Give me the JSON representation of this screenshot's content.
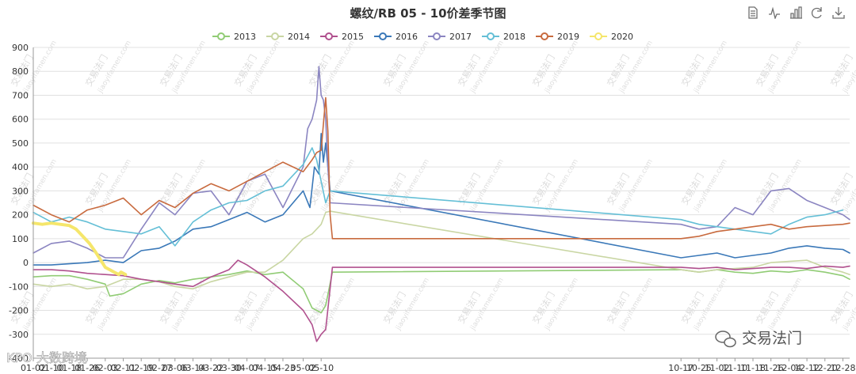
{
  "toolbar": {
    "icons": [
      "data-view-icon",
      "line-chart-icon",
      "bar-chart-icon",
      "refresh-icon",
      "download-icon"
    ]
  },
  "watermarks": {
    "text": "交易法门",
    "url": "jiaoyifamen.com",
    "bottom_left": "KPO 大数跨境",
    "bottom_right": "交易法门"
  },
  "chart_data": {
    "type": "line",
    "title": "螺纹/RB 05 - 10价差季节图",
    "xlabel": "",
    "ylabel": "",
    "ylim": [
      -400,
      900
    ],
    "yticks": [
      -400,
      -300,
      -200,
      -100,
      0,
      100,
      200,
      300,
      400,
      500,
      600,
      700,
      800,
      900
    ],
    "grid": true,
    "legend_position": "top-center",
    "x_date_range": [
      "01-02",
      "12-31"
    ],
    "xticks": [
      "01-02",
      "01-10",
      "01-18",
      "01-26",
      "02-03",
      "02-11",
      "02-19",
      "02-27",
      "03-06",
      "03-14",
      "03-22",
      "03-30",
      "04-07",
      "04-15",
      "04-23",
      "05-02",
      "05-10",
      "10-17",
      "10-25",
      "11-02",
      "11-10",
      "11-18",
      "11-26",
      "12-04",
      "12-12",
      "12-20",
      "12-28"
    ],
    "series": [
      {
        "name": "2013",
        "color": "#91cc75",
        "x": [
          "01-02",
          "01-10",
          "01-18",
          "01-26",
          "02-03",
          "02-05",
          "02-11",
          "02-19",
          "02-27",
          "03-06",
          "03-14",
          "03-22",
          "03-30",
          "04-07",
          "04-15",
          "04-23",
          "05-02",
          "05-06",
          "05-10",
          "05-12",
          "05-15",
          "10-17",
          "10-25",
          "11-02",
          "11-10",
          "11-18",
          "11-26",
          "12-04",
          "12-12",
          "12-20",
          "12-28",
          "12-31"
        ],
        "values": [
          -60,
          -55,
          -55,
          -70,
          -90,
          -140,
          -130,
          -90,
          -75,
          -85,
          -70,
          -60,
          -50,
          -35,
          -50,
          -40,
          -110,
          -190,
          -210,
          -180,
          -40,
          -30,
          -40,
          -30,
          -40,
          -45,
          -35,
          -40,
          -30,
          -40,
          -55,
          -70
        ]
      },
      {
        "name": "2014",
        "color": "#c9d6a3",
        "x": [
          "01-02",
          "01-10",
          "01-18",
          "01-26",
          "02-03",
          "02-11",
          "02-19",
          "02-27",
          "03-06",
          "03-14",
          "03-22",
          "03-30",
          "04-07",
          "04-15",
          "04-23",
          "05-02",
          "05-06",
          "05-10",
          "05-12",
          "05-14",
          "10-17",
          "10-25",
          "11-02",
          "11-10",
          "11-18",
          "11-26",
          "12-04",
          "12-12",
          "12-20",
          "12-28",
          "12-31"
        ],
        "values": [
          -90,
          -100,
          -90,
          -110,
          -100,
          -70,
          -70,
          -80,
          -100,
          -110,
          -80,
          -60,
          -40,
          -40,
          10,
          100,
          120,
          160,
          210,
          215,
          -30,
          -40,
          -30,
          -25,
          -20,
          0,
          5,
          10,
          -20,
          -40,
          -50
        ]
      },
      {
        "name": "2015",
        "color": "#b0508e",
        "x": [
          "01-02",
          "01-10",
          "01-18",
          "01-26",
          "02-03",
          "02-11",
          "02-19",
          "02-27",
          "03-06",
          "03-14",
          "03-22",
          "03-30",
          "04-03",
          "04-07",
          "04-15",
          "04-23",
          "05-02",
          "05-06",
          "05-08",
          "05-10",
          "05-12",
          "05-15",
          "10-17",
          "10-25",
          "11-02",
          "11-10",
          "11-18",
          "11-26",
          "12-04",
          "12-12",
          "12-20",
          "12-28",
          "12-31"
        ],
        "values": [
          -30,
          -30,
          -35,
          -45,
          -50,
          -55,
          -70,
          -80,
          -90,
          -100,
          -60,
          -30,
          10,
          -10,
          -60,
          -120,
          -200,
          -260,
          -330,
          -300,
          -280,
          -20,
          -20,
          -25,
          -20,
          -30,
          -25,
          -20,
          -20,
          -25,
          -15,
          -20,
          -15
        ]
      },
      {
        "name": "2016",
        "color": "#3a78b8",
        "x": [
          "01-02",
          "01-10",
          "01-18",
          "01-26",
          "02-03",
          "02-11",
          "02-19",
          "02-27",
          "03-06",
          "03-14",
          "03-22",
          "03-30",
          "04-07",
          "04-15",
          "04-23",
          "05-02",
          "05-05",
          "05-07",
          "05-09",
          "05-10",
          "05-11",
          "05-12",
          "05-14",
          "10-17",
          "10-25",
          "11-02",
          "11-10",
          "11-18",
          "11-26",
          "12-04",
          "12-12",
          "12-20",
          "12-28",
          "12-31"
        ],
        "values": [
          -10,
          -10,
          -5,
          0,
          10,
          0,
          50,
          60,
          90,
          140,
          150,
          180,
          210,
          170,
          200,
          300,
          230,
          400,
          370,
          540,
          420,
          500,
          300,
          20,
          30,
          40,
          20,
          30,
          40,
          60,
          70,
          60,
          55,
          40
        ]
      },
      {
        "name": "2017",
        "color": "#8b85c1",
        "x": [
          "01-02",
          "01-10",
          "01-18",
          "01-26",
          "02-03",
          "02-11",
          "02-19",
          "02-27",
          "03-06",
          "03-14",
          "03-22",
          "03-30",
          "04-07",
          "04-15",
          "04-23",
          "05-02",
          "05-04",
          "05-06",
          "05-08",
          "05-09",
          "05-10",
          "05-11",
          "05-12",
          "05-13",
          "05-14",
          "10-17",
          "10-25",
          "11-02",
          "11-10",
          "11-18",
          "11-26",
          "12-04",
          "12-12",
          "12-20",
          "12-28",
          "12-31"
        ],
        "values": [
          40,
          80,
          90,
          60,
          20,
          20,
          140,
          250,
          200,
          290,
          300,
          200,
          340,
          370,
          230,
          400,
          560,
          600,
          680,
          820,
          700,
          680,
          600,
          400,
          250,
          160,
          140,
          150,
          230,
          200,
          300,
          310,
          260,
          230,
          200,
          180
        ]
      },
      {
        "name": "2018",
        "color": "#64bfd6",
        "x": [
          "01-02",
          "01-10",
          "01-18",
          "01-26",
          "02-03",
          "02-11",
          "02-19",
          "02-27",
          "03-06",
          "03-14",
          "03-22",
          "03-30",
          "04-07",
          "04-15",
          "04-23",
          "05-02",
          "05-06",
          "05-08",
          "05-10",
          "05-12",
          "05-14",
          "10-17",
          "10-25",
          "11-02",
          "11-10",
          "11-18",
          "11-26",
          "12-04",
          "12-12",
          "12-20",
          "12-28"
        ],
        "values": [
          210,
          170,
          190,
          170,
          140,
          130,
          120,
          150,
          70,
          170,
          220,
          250,
          260,
          300,
          320,
          410,
          480,
          430,
          340,
          250,
          300,
          180,
          160,
          150,
          140,
          130,
          120,
          160,
          190,
          200,
          220
        ]
      },
      {
        "name": "2019",
        "color": "#c86a3e",
        "x": [
          "01-02",
          "01-10",
          "01-18",
          "01-26",
          "02-03",
          "02-11",
          "02-19",
          "02-27",
          "03-06",
          "03-14",
          "03-22",
          "03-30",
          "04-07",
          "04-15",
          "04-23",
          "05-02",
          "05-06",
          "05-08",
          "05-10",
          "05-12",
          "05-13",
          "05-14",
          "05-15",
          "10-17",
          "10-25",
          "11-02",
          "11-10",
          "11-18",
          "11-26",
          "12-04",
          "12-12",
          "12-20",
          "12-28",
          "12-31"
        ],
        "values": [
          240,
          200,
          170,
          220,
          240,
          270,
          200,
          260,
          230,
          290,
          330,
          300,
          340,
          380,
          420,
          380,
          430,
          460,
          470,
          690,
          550,
          200,
          100,
          100,
          110,
          130,
          140,
          150,
          160,
          140,
          150,
          155,
          160,
          165
        ]
      },
      {
        "name": "2020",
        "color": "#f5e66b",
        "x": [
          "01-02",
          "01-06",
          "01-10",
          "01-14",
          "01-18",
          "01-21",
          "01-24",
          "01-27",
          "01-30",
          "02-01",
          "02-03",
          "02-05",
          "02-07",
          "02-09",
          "02-10",
          "02-12"
        ],
        "values": [
          165,
          160,
          165,
          160,
          155,
          140,
          110,
          80,
          40,
          10,
          -20,
          -30,
          -40,
          -50,
          -40,
          -50
        ]
      }
    ]
  }
}
